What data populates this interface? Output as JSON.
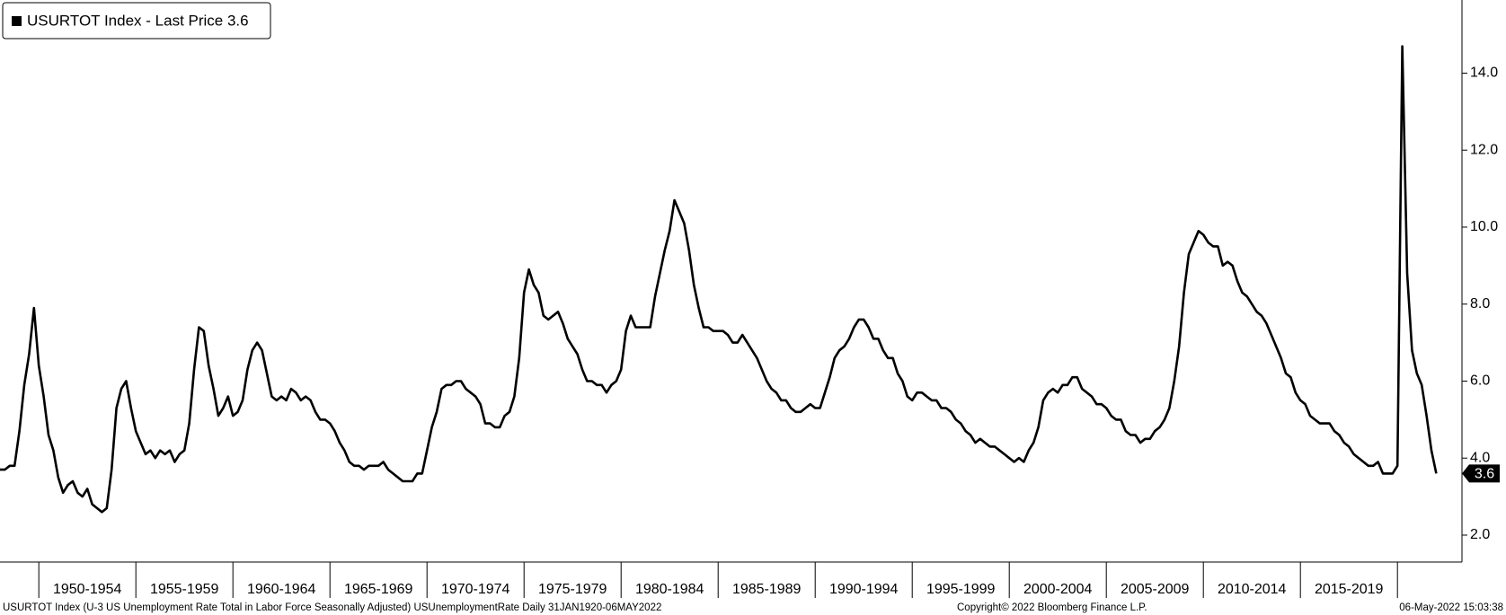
{
  "chart_data": {
    "type": "line",
    "categories": [
      null,
      "1950-1954",
      "1955-1959",
      "1960-1964",
      "1965-1969",
      "1970-1974",
      "1975-1979",
      "1980-1984",
      "1985-1989",
      "1990-1994",
      "1995-1999",
      "2000-2004",
      "2005-2009",
      "2010-2014",
      "2015-2019",
      null
    ],
    "series": [
      {
        "name": "USURTOT Index - Last Price 3.6",
        "color": "#000000",
        "values": [
          [
            3.7,
            3.7,
            3.8,
            3.8,
            4.7,
            5.9,
            6.7,
            7.9
          ],
          [
            6.4,
            5.6,
            4.6,
            4.2,
            3.5,
            3.1,
            3.3,
            3.4,
            3.1,
            3.0,
            3.2,
            2.8,
            2.7,
            2.6,
            2.7,
            3.7,
            5.3,
            5.8,
            6.0,
            5.3
          ],
          [
            4.7,
            4.4,
            4.1,
            4.2,
            4.0,
            4.2,
            4.1,
            4.2,
            3.9,
            4.1,
            4.2,
            4.9,
            6.3,
            7.4,
            7.3,
            6.4,
            5.8,
            5.1,
            5.3,
            5.6
          ],
          [
            5.1,
            5.2,
            5.5,
            6.3,
            6.8,
            7.0,
            6.8,
            6.2,
            5.6,
            5.5,
            5.6,
            5.5,
            5.8,
            5.7,
            5.5,
            5.6,
            5.5,
            5.2,
            5.0,
            5.0
          ],
          [
            4.9,
            4.7,
            4.4,
            4.2,
            3.9,
            3.8,
            3.8,
            3.7,
            3.8,
            3.8,
            3.8,
            3.9,
            3.7,
            3.6,
            3.5,
            3.4,
            3.4,
            3.4,
            3.6,
            3.6
          ],
          [
            4.2,
            4.8,
            5.2,
            5.8,
            5.9,
            5.9,
            6.0,
            6.0,
            5.8,
            5.7,
            5.6,
            5.4,
            4.9,
            4.9,
            4.8,
            4.8,
            5.1,
            5.2,
            5.6,
            6.6
          ],
          [
            8.3,
            8.9,
            8.5,
            8.3,
            7.7,
            7.6,
            7.7,
            7.8,
            7.5,
            7.1,
            6.9,
            6.7,
            6.3,
            6.0,
            6.0,
            5.9,
            5.9,
            5.7,
            5.9,
            6.0
          ],
          [
            6.3,
            7.3,
            7.7,
            7.4,
            7.4,
            7.4,
            7.4,
            8.2,
            8.8,
            9.4,
            9.9,
            10.7,
            10.4,
            10.1,
            9.4,
            8.5,
            7.9,
            7.4,
            7.4,
            7.3
          ],
          [
            7.3,
            7.3,
            7.2,
            7.0,
            7.0,
            7.2,
            7.0,
            6.8,
            6.6,
            6.3,
            6.0,
            5.8,
            5.7,
            5.5,
            5.5,
            5.3,
            5.2,
            5.2,
            5.3,
            5.4
          ],
          [
            5.3,
            5.3,
            5.7,
            6.1,
            6.6,
            6.8,
            6.9,
            7.1,
            7.4,
            7.6,
            7.6,
            7.4,
            7.1,
            7.1,
            6.8,
            6.6,
            6.6,
            6.2,
            6.0,
            5.6
          ],
          [
            5.5,
            5.7,
            5.7,
            5.6,
            5.5,
            5.5,
            5.3,
            5.3,
            5.2,
            5.0,
            4.9,
            4.7,
            4.6,
            4.4,
            4.5,
            4.4,
            4.3,
            4.3,
            4.2,
            4.1
          ],
          [
            4.0,
            3.9,
            4.0,
            3.9,
            4.2,
            4.4,
            4.8,
            5.5,
            5.7,
            5.8,
            5.7,
            5.9,
            5.9,
            6.1,
            6.1,
            5.8,
            5.7,
            5.6,
            5.4,
            5.4
          ],
          [
            5.3,
            5.1,
            5.0,
            5.0,
            4.7,
            4.6,
            4.6,
            4.4,
            4.5,
            4.5,
            4.7,
            4.8,
            5.0,
            5.3,
            6.0,
            6.9,
            8.3,
            9.3,
            9.6,
            9.9
          ],
          [
            9.8,
            9.6,
            9.5,
            9.5,
            9.0,
            9.1,
            9.0,
            8.6,
            8.3,
            8.2,
            8.0,
            7.8,
            7.7,
            7.5,
            7.2,
            6.9,
            6.6,
            6.2,
            6.1,
            5.7
          ],
          [
            5.5,
            5.4,
            5.1,
            5.0,
            4.9,
            4.9,
            4.9,
            4.7,
            4.6,
            4.4,
            4.3,
            4.1,
            4.0,
            3.9,
            3.8,
            3.8,
            3.9,
            3.6,
            3.6,
            3.6
          ],
          [
            3.8,
            14.7,
            8.8,
            6.8,
            6.2,
            5.9,
            5.1,
            4.2,
            3.6
          ]
        ]
      }
    ],
    "last_price_label": "3.6",
    "ylim": [
      1.3,
      15.9
    ],
    "yticks": [
      {
        "value": 2,
        "label": "2.0"
      },
      {
        "value": 4,
        "label": "4.0"
      },
      {
        "value": 6,
        "label": "6.0"
      },
      {
        "value": 8,
        "label": "8.0"
      },
      {
        "value": 10,
        "label": "10.0"
      },
      {
        "value": 12,
        "label": "12.0"
      },
      {
        "value": 14,
        "label": "14.0"
      }
    ],
    "footer_left": "USURTOT Index (U-3 US Unemployment Rate Total in Labor Force Seasonally Adjusted) USUnemploymentRate  Daily 31JAN1920-06MAY2022",
    "footer_center": "Copyright© 2022 Bloomberg Finance L.P.",
    "footer_right": "06-May-2022 15:03:38"
  }
}
